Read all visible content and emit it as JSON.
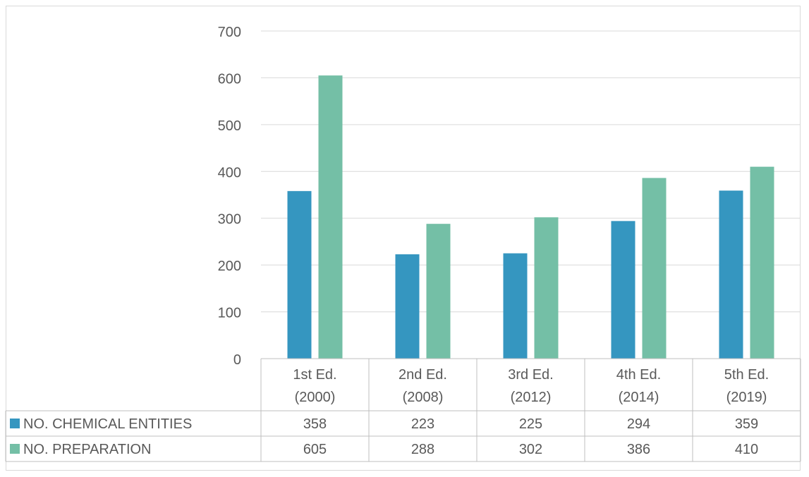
{
  "chart_data": {
    "type": "bar",
    "categories": [
      [
        "1st Ed.",
        "(2000)"
      ],
      [
        "2nd Ed.",
        "(2008)"
      ],
      [
        "3rd Ed.",
        "(2012)"
      ],
      [
        "4th Ed.",
        "(2014)"
      ],
      [
        "5th Ed.",
        "(2019)"
      ]
    ],
    "series": [
      {
        "name": "NO. CHEMICAL ENTITIES",
        "color": "#3596C0",
        "values": [
          358,
          223,
          225,
          294,
          359
        ]
      },
      {
        "name": "NO. PREPARATION",
        "color": "#74BFA6",
        "values": [
          605,
          288,
          302,
          386,
          410
        ]
      }
    ],
    "ylim": [
      0,
      700
    ],
    "yticks": [
      0,
      100,
      200,
      300,
      400,
      500,
      600,
      700
    ],
    "grid": true,
    "legend": "data-table"
  }
}
